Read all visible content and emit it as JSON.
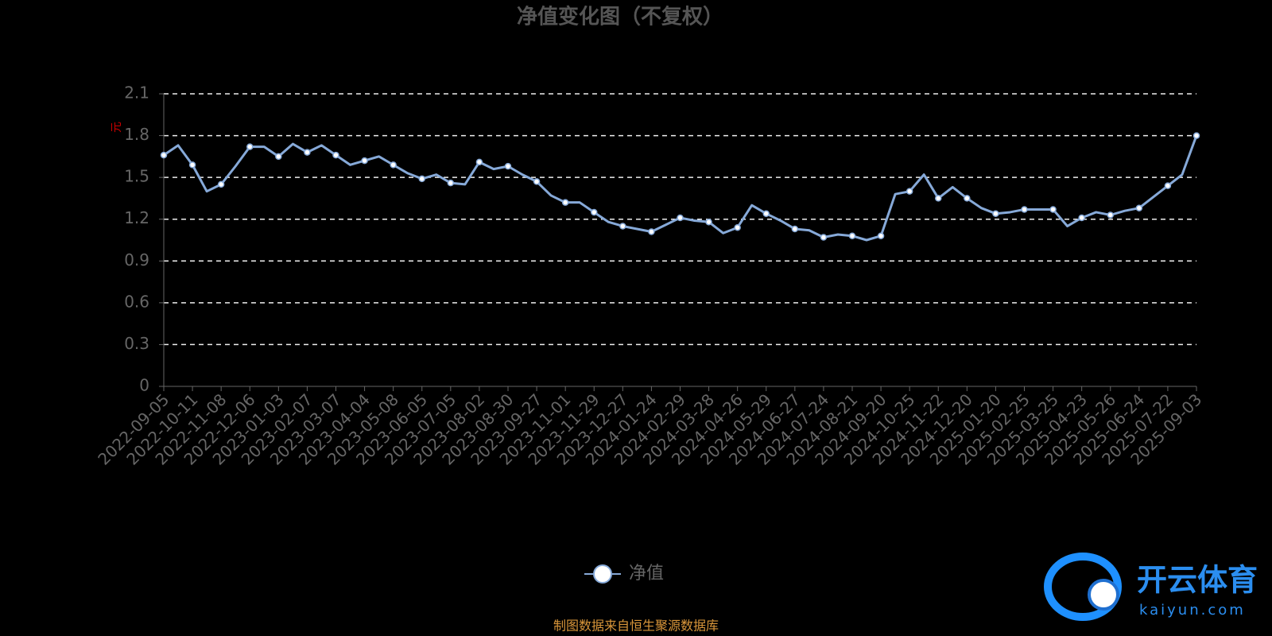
{
  "chart_data": {
    "type": "line",
    "title": "净值变化图（不复权）",
    "y_label": "元",
    "categories": [
      "2022-09-05",
      null,
      "2022-10-11",
      null,
      "2022-11-08",
      null,
      "2022-12-06",
      null,
      "2023-01-03",
      null,
      "2023-02-07",
      null,
      "2023-03-07",
      null,
      "2023-04-04",
      null,
      "2023-05-08",
      null,
      "2023-06-05",
      null,
      "2023-07-05",
      null,
      "2023-08-02",
      null,
      "2023-08-30",
      null,
      "2023-09-27",
      null,
      "2023-11-01",
      null,
      "2023-11-29",
      null,
      "2023-12-27",
      null,
      "2024-01-24",
      null,
      "2024-02-29",
      null,
      "2024-03-28",
      null,
      "2024-04-26",
      null,
      "2024-05-29",
      null,
      "2024-06-27",
      null,
      "2024-07-24",
      null,
      "2024-08-21",
      null,
      "2024-09-20",
      null,
      "2024-10-25",
      null,
      "2024-11-22",
      null,
      "2024-12-20",
      null,
      "2025-01-20",
      null,
      "2025-02-25",
      null,
      "2025-03-25",
      null,
      "2025-04-23",
      null,
      "2025-05-26",
      null,
      "2025-06-24",
      null,
      "2025-07-22",
      null,
      "2025-09-03"
    ],
    "series": [
      {
        "name": "净值",
        "color": "#86a9d8",
        "values": [
          1.66,
          1.73,
          1.59,
          1.4,
          1.45,
          1.58,
          1.72,
          1.72,
          1.65,
          1.74,
          1.68,
          1.73,
          1.66,
          1.59,
          1.62,
          1.65,
          1.59,
          1.53,
          1.49,
          1.52,
          1.46,
          1.45,
          1.61,
          1.56,
          1.58,
          1.52,
          1.47,
          1.37,
          1.32,
          1.32,
          1.25,
          1.18,
          1.15,
          1.13,
          1.11,
          1.16,
          1.21,
          1.19,
          1.18,
          1.1,
          1.14,
          1.3,
          1.24,
          1.19,
          1.13,
          1.12,
          1.07,
          1.09,
          1.08,
          1.05,
          1.08,
          1.38,
          1.4,
          1.52,
          1.35,
          1.43,
          1.35,
          1.28,
          1.24,
          1.25,
          1.27,
          1.27,
          1.27,
          1.15,
          1.21,
          1.25,
          1.23,
          1.26,
          1.28,
          1.36,
          1.44,
          1.52,
          1.8
        ]
      }
    ],
    "ylim": [
      0,
      2.1
    ],
    "yticks": [
      0,
      0.3,
      0.6,
      0.9,
      1.2,
      1.5,
      1.8,
      2.1
    ],
    "grid": true,
    "legend": "bottom",
    "source": "制图数据来自恒生聚源数据库",
    "watermark": {
      "brand": "开云体育",
      "url": "kaiyun.com"
    }
  }
}
